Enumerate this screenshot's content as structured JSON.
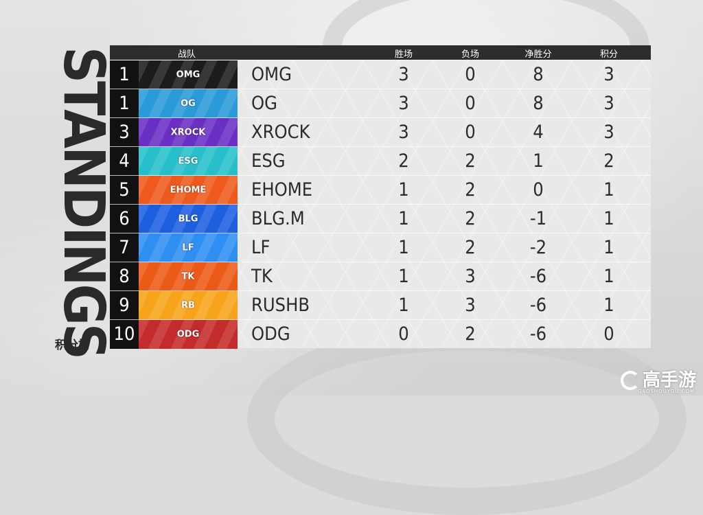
{
  "title": "STANDINGS",
  "subtitle": "积分榜",
  "headers": {
    "team": "战队",
    "wins": "胜场",
    "losses": "负场",
    "net": "净胜分",
    "points": "积分"
  },
  "teams": [
    {
      "rank": "1",
      "name": "OMG",
      "logo_text": "OMG",
      "logo_color": "#1c1c1c",
      "wins": "3",
      "losses": "0",
      "net": "8",
      "points": "3"
    },
    {
      "rank": "1",
      "name": "OG",
      "logo_text": "OG",
      "logo_color": "#2a9ad8",
      "wins": "3",
      "losses": "0",
      "net": "8",
      "points": "3"
    },
    {
      "rank": "3",
      "name": "XROCK",
      "logo_text": "XROCK",
      "logo_color": "#6a2fc4",
      "wins": "3",
      "losses": "0",
      "net": "4",
      "points": "3"
    },
    {
      "rank": "4",
      "name": "ESG",
      "logo_text": "ESG",
      "logo_color": "#27bfc9",
      "wins": "2",
      "losses": "2",
      "net": "1",
      "points": "2"
    },
    {
      "rank": "5",
      "name": "EHOME",
      "logo_text": "EHOME",
      "logo_color": "#ee5a1d",
      "wins": "1",
      "losses": "2",
      "net": "0",
      "points": "1"
    },
    {
      "rank": "6",
      "name": "BLG.M",
      "logo_text": "BLG",
      "logo_color": "#1e5fe0",
      "wins": "1",
      "losses": "2",
      "net": "-1",
      "points": "1"
    },
    {
      "rank": "7",
      "name": "LF",
      "logo_text": "LF",
      "logo_color": "#2f8ef2",
      "wins": "1",
      "losses": "2",
      "net": "-2",
      "points": "1"
    },
    {
      "rank": "8",
      "name": "TK",
      "logo_text": "TK",
      "logo_color": "#ec5a18",
      "wins": "1",
      "losses": "3",
      "net": "-6",
      "points": "1"
    },
    {
      "rank": "9",
      "name": "RUSHB",
      "logo_text": "RB",
      "logo_color": "#f7a41a",
      "wins": "1",
      "losses": "3",
      "net": "-6",
      "points": "1"
    },
    {
      "rank": "10",
      "name": "ODG",
      "logo_text": "ODG",
      "logo_color": "#c42b2b",
      "wins": "0",
      "losses": "2",
      "net": "-6",
      "points": "0"
    }
  ],
  "watermark": {
    "text": "高手游",
    "url": "GAOSHOUYOU.COM"
  }
}
